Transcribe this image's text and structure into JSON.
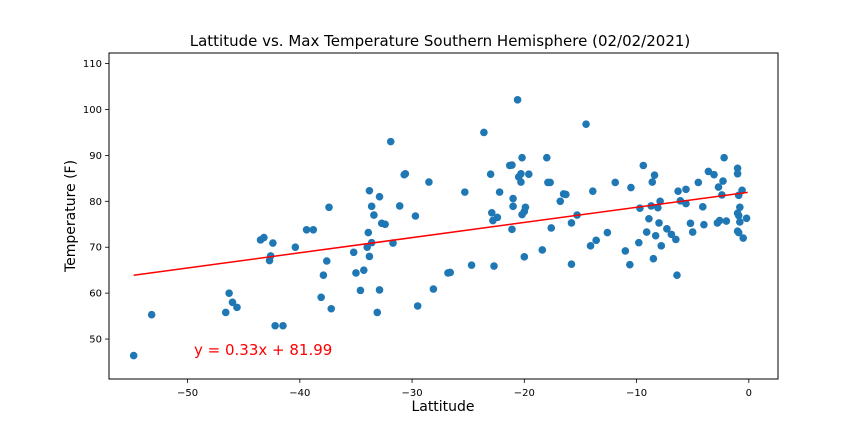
{
  "chart_data": {
    "type": "scatter",
    "title": "Lattitude  vs. Max Temperature Southern Hemisphere (02/02/2021)",
    "xlabel": "Lattitude",
    "ylabel": "Temperature (F)",
    "xlim": [
      -57,
      2.6
    ],
    "ylim": [
      41.3,
      112.3
    ],
    "xticks": [
      -50,
      -40,
      -30,
      -20,
      -10,
      0
    ],
    "xtick_labels": [
      "−50",
      "−40",
      "−30",
      "−20",
      "−10",
      "0"
    ],
    "yticks": [
      50,
      60,
      70,
      80,
      90,
      100,
      110
    ],
    "ytick_labels": [
      "50",
      "60",
      "70",
      "80",
      "90",
      "100",
      "110"
    ],
    "grid": false,
    "point_color": "#1f77b4",
    "regression": {
      "slope": 0.33,
      "intercept": 81.99,
      "x_range": [
        -54.8,
        -0.1
      ],
      "color": "#ff0000",
      "equation": "y = 0.33x + 81.99",
      "equation_color": "#ff0000"
    },
    "points": [
      [
        -54.8,
        46.4
      ],
      [
        -53.2,
        55.3
      ],
      [
        -46.6,
        55.8
      ],
      [
        -46.3,
        60.0
      ],
      [
        -46.0,
        58.0
      ],
      [
        -45.6,
        56.9
      ],
      [
        -43.5,
        71.6
      ],
      [
        -43.2,
        72.1
      ],
      [
        -42.7,
        67.1
      ],
      [
        -42.6,
        68.1
      ],
      [
        -42.4,
        70.9
      ],
      [
        -42.2,
        52.9
      ],
      [
        -41.5,
        52.9
      ],
      [
        -40.4,
        70.0
      ],
      [
        -39.4,
        73.8
      ],
      [
        -38.8,
        73.8
      ],
      [
        -38.1,
        59.1
      ],
      [
        -37.9,
        63.9
      ],
      [
        -37.6,
        67.0
      ],
      [
        -37.4,
        78.7
      ],
      [
        -37.2,
        56.6
      ],
      [
        -35.2,
        68.9
      ],
      [
        -35.0,
        64.4
      ],
      [
        -34.6,
        60.6
      ],
      [
        -34.3,
        65.0
      ],
      [
        -34.0,
        70.0
      ],
      [
        -33.9,
        73.2
      ],
      [
        -33.8,
        68.0
      ],
      [
        -33.8,
        82.3
      ],
      [
        -33.6,
        78.9
      ],
      [
        -33.4,
        77.0
      ],
      [
        -33.6,
        71.0
      ],
      [
        -33.1,
        55.8
      ],
      [
        -32.9,
        81.0
      ],
      [
        -32.7,
        75.2
      ],
      [
        -32.9,
        60.7
      ],
      [
        -32.4,
        75.0
      ],
      [
        -31.9,
        93.0
      ],
      [
        -31.7,
        70.9
      ],
      [
        -31.1,
        79.0
      ],
      [
        -30.7,
        85.8
      ],
      [
        -30.6,
        86.0
      ],
      [
        -29.7,
        76.8
      ],
      [
        -29.5,
        57.2
      ],
      [
        -28.5,
        84.2
      ],
      [
        -28.1,
        60.9
      ],
      [
        -26.8,
        64.4
      ],
      [
        -26.6,
        64.5
      ],
      [
        -25.3,
        82.0
      ],
      [
        -24.7,
        66.1
      ],
      [
        -23.6,
        95.0
      ],
      [
        -23.0,
        85.9
      ],
      [
        -22.9,
        77.5
      ],
      [
        -22.8,
        75.8
      ],
      [
        -22.7,
        65.9
      ],
      [
        -22.4,
        76.5
      ],
      [
        -22.2,
        82.0
      ],
      [
        -21.3,
        87.8
      ],
      [
        -21.1,
        87.9
      ],
      [
        -21.1,
        73.9
      ],
      [
        -21.0,
        80.6
      ],
      [
        -21.0,
        78.9
      ],
      [
        -20.6,
        102.1
      ],
      [
        -20.5,
        85.3
      ],
      [
        -20.3,
        84.2
      ],
      [
        -20.2,
        89.5
      ],
      [
        -20.3,
        86.0
      ],
      [
        -20.2,
        77.1
      ],
      [
        -20.0,
        77.8
      ],
      [
        -19.9,
        78.7
      ],
      [
        -20.0,
        67.9
      ],
      [
        -19.6,
        85.9
      ],
      [
        -18.4,
        69.4
      ],
      [
        -18.0,
        89.5
      ],
      [
        -17.9,
        84.1
      ],
      [
        -17.7,
        84.1
      ],
      [
        -17.6,
        74.2
      ],
      [
        -16.8,
        80.0
      ],
      [
        -16.5,
        81.6
      ],
      [
        -16.3,
        81.5
      ],
      [
        -15.8,
        75.3
      ],
      [
        -15.8,
        66.3
      ],
      [
        -15.3,
        77.0
      ],
      [
        -14.5,
        96.8
      ],
      [
        -14.1,
        70.3
      ],
      [
        -13.9,
        82.2
      ],
      [
        -13.6,
        71.5
      ],
      [
        -12.6,
        73.2
      ],
      [
        -11.9,
        84.1
      ],
      [
        -11.0,
        69.2
      ],
      [
        -10.6,
        66.2
      ],
      [
        -10.5,
        83.0
      ],
      [
        -9.8,
        71.0
      ],
      [
        -9.7,
        78.5
      ],
      [
        -9.4,
        87.8
      ],
      [
        -9.1,
        73.3
      ],
      [
        -8.9,
        76.2
      ],
      [
        -8.7,
        79.0
      ],
      [
        -8.6,
        84.2
      ],
      [
        -8.4,
        85.7
      ],
      [
        -8.5,
        67.5
      ],
      [
        -8.3,
        72.5
      ],
      [
        -8.1,
        78.6
      ],
      [
        -7.9,
        80.0
      ],
      [
        -8.0,
        75.3
      ],
      [
        -7.8,
        70.3
      ],
      [
        -7.3,
        74.0
      ],
      [
        -6.9,
        72.8
      ],
      [
        -6.5,
        71.7
      ],
      [
        -6.4,
        63.9
      ],
      [
        -6.3,
        82.2
      ],
      [
        -6.1,
        80.1
      ],
      [
        -5.6,
        82.6
      ],
      [
        -5.6,
        79.5
      ],
      [
        -5.2,
        75.2
      ],
      [
        -5.0,
        73.3
      ],
      [
        -4.5,
        84.1
      ],
      [
        -4.1,
        78.8
      ],
      [
        -4.0,
        74.9
      ],
      [
        -3.6,
        86.5
      ],
      [
        -3.1,
        85.8
      ],
      [
        -2.8,
        75.3
      ],
      [
        -2.7,
        83.1
      ],
      [
        -2.6,
        75.8
      ],
      [
        -2.4,
        81.4
      ],
      [
        -2.3,
        84.4
      ],
      [
        -2.2,
        89.5
      ],
      [
        -2.0,
        75.7
      ],
      [
        -1.0,
        87.2
      ],
      [
        -1.0,
        86.0
      ],
      [
        -1.0,
        77.4
      ],
      [
        -0.9,
        81.3
      ],
      [
        -0.9,
        76.9
      ],
      [
        -0.8,
        78.7
      ],
      [
        -0.8,
        75.5
      ],
      [
        -1.0,
        73.5
      ],
      [
        -0.9,
        73.2
      ],
      [
        -0.6,
        82.4
      ],
      [
        -0.5,
        72.0
      ],
      [
        -0.2,
        76.3
      ]
    ]
  }
}
